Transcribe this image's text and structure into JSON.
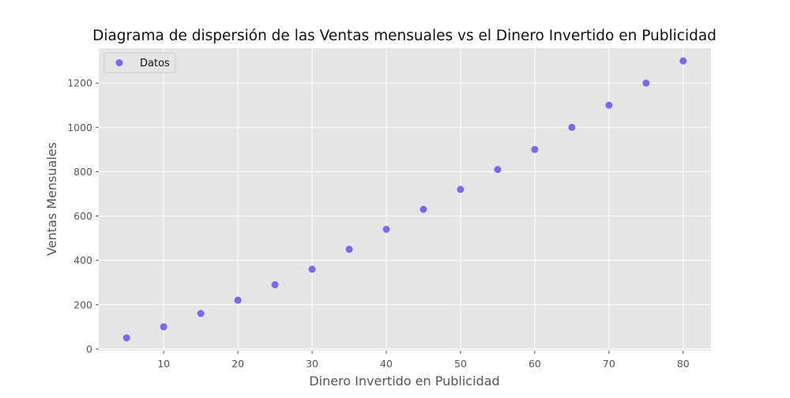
{
  "chart_data": {
    "type": "scatter",
    "title": "Diagrama de dispersión de las Ventas mensuales vs el Dinero Invertido en Publicidad",
    "xlabel": "Dinero Invertido en Publicidad",
    "ylabel": "Ventas Mensuales",
    "xlim": [
      1.25,
      83.75
    ],
    "ylim": [
      -7.5,
      1357.5
    ],
    "xticks": [
      10,
      20,
      30,
      40,
      50,
      60,
      70,
      80
    ],
    "yticks": [
      0,
      200,
      400,
      600,
      800,
      1000,
      1200
    ],
    "grid": true,
    "legend_position": "top-left",
    "series": [
      {
        "name": "Datos",
        "color": "#7b68ee",
        "x": [
          5,
          10,
          15,
          20,
          25,
          30,
          35,
          40,
          45,
          50,
          55,
          60,
          65,
          70,
          75,
          80
        ],
        "y": [
          50,
          100,
          160,
          220,
          290,
          360,
          450,
          540,
          630,
          720,
          810,
          900,
          1000,
          1100,
          1200,
          1300
        ]
      }
    ]
  },
  "style": {
    "plot_background": "#e5e5e5",
    "grid_color": "#ffffff",
    "text_color": "#555555",
    "title_color": "#111111"
  }
}
